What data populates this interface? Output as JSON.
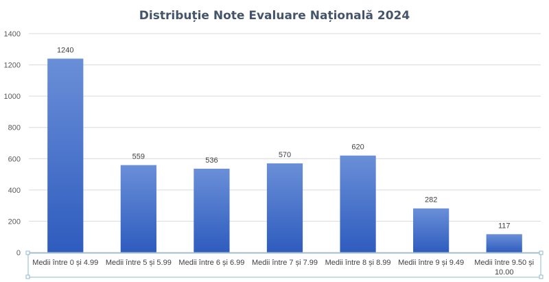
{
  "chart_data": {
    "type": "bar",
    "title": "Distribuție Note Evaluare Națională 2024",
    "categories": [
      "Medii între 0 și 4.99",
      "Medii între 5 și 5.99",
      "Medii între 6 și 6.99",
      "Medii între 7 și 7.99",
      "Medii între 8 și 8.99",
      "Medii între 9 și 9.49",
      "Medii între 9.50 și 10.00"
    ],
    "values": [
      1240,
      559,
      536,
      570,
      620,
      282,
      117
    ],
    "yticks": [
      0,
      200,
      400,
      600,
      800,
      1000,
      1200,
      1400
    ],
    "ylim": [
      0,
      1400
    ],
    "xlabel": "",
    "ylabel": "",
    "grid": true,
    "data_labels": true,
    "bar_color_top": "#6a8fd8",
    "bar_color_bottom": "#2e5cbe"
  }
}
